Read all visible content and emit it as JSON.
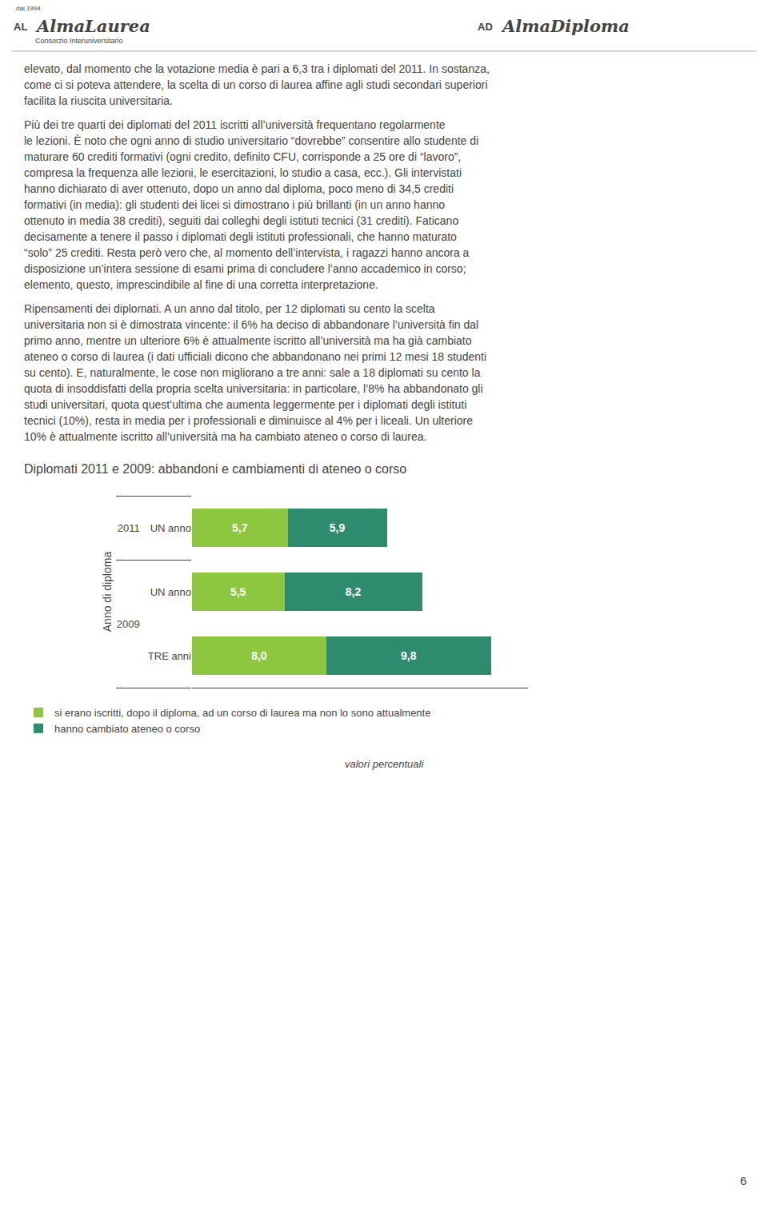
{
  "chart_data": {
    "type": "bar",
    "orientation": "horizontal",
    "stacked": true,
    "title": "Diplomati 2011 e 2009: abbandoni e cambiamenti di ateneo o corso",
    "ylabel": "Anno di diploma",
    "categories": [
      [
        "2011",
        "UN anno"
      ],
      [
        "2009",
        "UN anno"
      ],
      [
        "2009",
        "TRE anni"
      ]
    ],
    "series": [
      {
        "name": "si erano iscritti, dopo il diploma, ad un corso di laurea ma non lo sono attualmente",
        "color": "#8dc63f",
        "values": [
          5.7,
          5.5,
          8.0
        ],
        "value_labels": [
          "5,7",
          "5,5",
          "8,0"
        ]
      },
      {
        "name": "hanno cambiato ateneo o corso",
        "color": "#2e8b6e",
        "values": [
          5.9,
          8.2,
          9.8
        ],
        "value_labels": [
          "5,9",
          "8,2",
          "9,8"
        ]
      }
    ],
    "xlim": [
      0,
      20
    ],
    "data_labels": true,
    "tick_labels": "y",
    "grid": false,
    "legend": "bottom",
    "annotations": [
      [
        "dal 1994",
        "AL",
        "AlmaLaurea",
        "Consorzio Interuniversitario",
        "AD",
        "AlmaDiploma"
      ],
      [
        "elevato, dal momento che la votazione media è pari a 6,3 tra i diplomati del 2011. In sostanza,",
        "come ci si poteva attendere, la scelta di un corso di laurea affine agli studi secondari superiori",
        "facilita la riuscita universitaria."
      ],
      [
        "Più dei tre quarti dei diplomati del 2011 iscritti all’università frequentano regolarmente",
        "le lezioni. È noto che ogni anno di studio universitario “dovrebbe” consentire allo studente di",
        "maturare 60 crediti formativi (ogni credito, definito CFU, corrisponde a 25 ore di “lavoro”,",
        "compresa la frequenza alle lezioni, le esercitazioni, lo studio a casa, ecc.). Gli intervistati",
        "hanno dichiarato di aver ottenuto, dopo un anno dal diploma, poco meno di 34,5 crediti",
        "formativi (in media): gli studenti dei licei si dimostrano i più brillanti (in un anno hanno",
        "ottenuto in media 38 crediti), seguiti dai colleghi degli istituti tecnici (31 crediti). Faticano",
        "decisamente a tenere il passo i diplomati degli istituti professionali, che hanno maturato",
        "“solo” 25 crediti. Resta però vero che, al momento dell’intervista, i ragazzi hanno ancora a",
        "disposizione un’intera sessione di esami prima di concludere l’anno accademico in corso;",
        "elemento, questo, imprescindibile al fine di una corretta interpretazione."
      ],
      [
        "Ripensamenti dei diplomati. A un anno dal titolo, per 12 diplomati su cento la scelta",
        "universitaria non si è dimostrata vincente: il 6% ha deciso di abbandonare l’università fin dal",
        "primo anno, mentre un ulteriore 6% è attualmente iscritto all’università ma ha già cambiato",
        "ateneo o corso di laurea (i dati ufficiali dicono che abbandonano nei primi 12 mesi 18 studenti",
        "su cento). E, naturalmente, le cose non migliorano a tre anni: sale a 18 diplomati su cento la",
        "quota di insoddisfatti della propria scelta universitaria: in particolare, l’8% ha abbandonato gli",
        "studi universitari, quota quest’ultima che aumenta leggermente per i diplomati degli istituti",
        "tecnici (10%), resta in media per i professionali e diminuisce al 4% per i liceali. Un ulteriore",
        "10% è attualmente iscritto all’università ma ha cambiato ateneo o corso di laurea."
      ],
      [
        "valori percentuali"
      ],
      [
        "6"
      ]
    ]
  }
}
